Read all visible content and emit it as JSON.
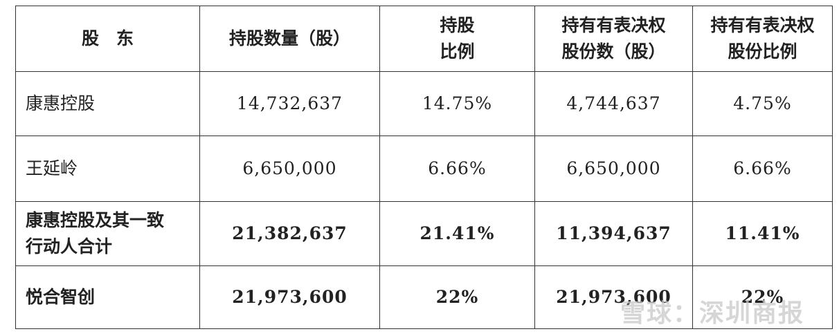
{
  "table": {
    "header": [
      [
        "股　东"
      ],
      [
        "持股数量（股）"
      ],
      [
        "持股",
        "比例"
      ],
      [
        "持有有表决权",
        "股份数（股）"
      ],
      [
        "持有有表决权",
        "股份比例"
      ]
    ],
    "rows": [
      [
        [
          "康惠控股"
        ],
        "14,732,637",
        "14.75%",
        "4,744,637",
        "4.75%"
      ],
      [
        [
          "王延岭"
        ],
        "6,650,000",
        "6.66%",
        "6,650,000",
        "6.66%"
      ],
      [
        [
          "康惠控股及其一致",
          "行动人合计"
        ],
        "21,382,637",
        "21.41%",
        "11,394,637",
        "11.41%"
      ],
      [
        [
          "悦合智创"
        ],
        "21,973,600",
        "22%",
        "21,973,600",
        "22%"
      ]
    ]
  },
  "watermark": "雪球：深圳商报"
}
